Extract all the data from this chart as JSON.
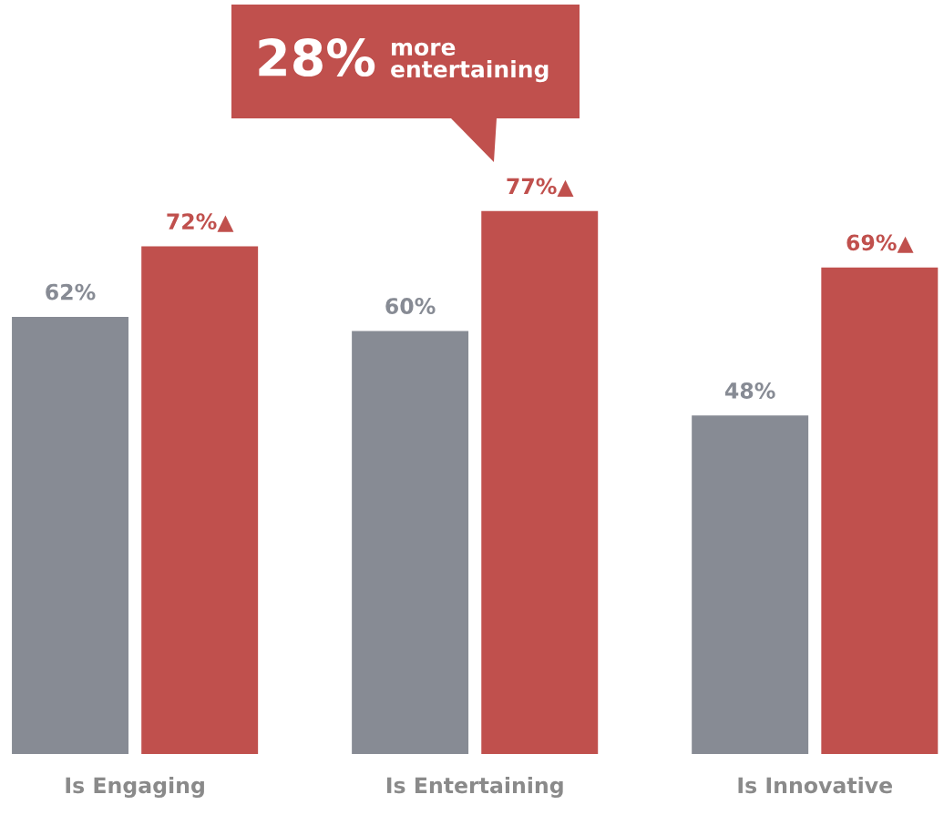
{
  "chart_data": {
    "type": "bar",
    "categories": [
      "Is Engaging",
      "Is Entertaining",
      "Is Innovative"
    ],
    "series": [
      {
        "color": "#878b94",
        "values": [
          62,
          60,
          48
        ],
        "value_labels": [
          "62%",
          "60%",
          "48%"
        ]
      },
      {
        "color": "#c0504d",
        "values": [
          72,
          77,
          69
        ],
        "value_labels": [
          "72%▲",
          "77%▲",
          "69%▲"
        ]
      }
    ],
    "tick_labels": "x",
    "grid": false,
    "legend": false,
    "annotations": [
      "28%",
      "more\nentertaining"
    ]
  }
}
